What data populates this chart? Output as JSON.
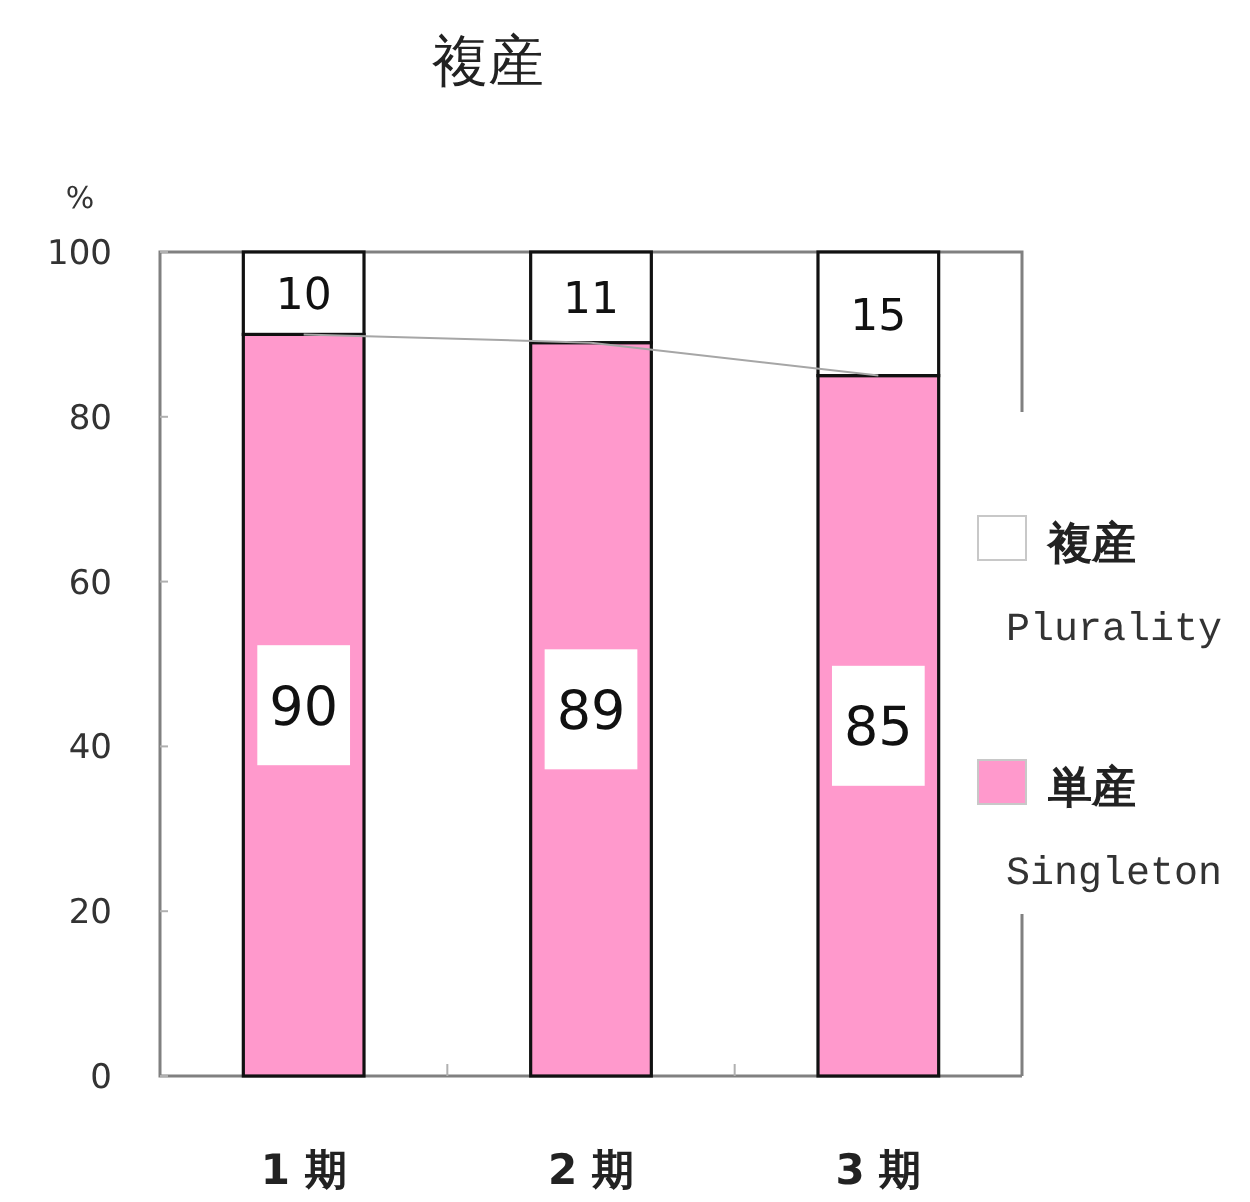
{
  "chart_data": {
    "type": "bar",
    "title": "複産",
    "ylabel": "%",
    "categories": [
      "1 期",
      "2 期",
      "3 期"
    ],
    "stacked": true,
    "ylim": [
      0,
      100
    ],
    "yticks": [
      0,
      20,
      40,
      60,
      80,
      100
    ],
    "legend": "right",
    "series": [
      {
        "name": "単産\nSingleton",
        "color": "#ff99cc",
        "values": [
          90,
          89,
          85
        ],
        "value_labels": [
          "90",
          "89",
          "85"
        ]
      },
      {
        "name": "複産\nPlurality",
        "color": "#ffffff",
        "values": [
          10,
          11,
          15
        ],
        "value_labels": [
          "10",
          "11",
          "15"
        ]
      },
      {
        "type": "line",
        "color": "#a6a6a6",
        "values": [
          90,
          89,
          85
        ]
      }
    ]
  }
}
